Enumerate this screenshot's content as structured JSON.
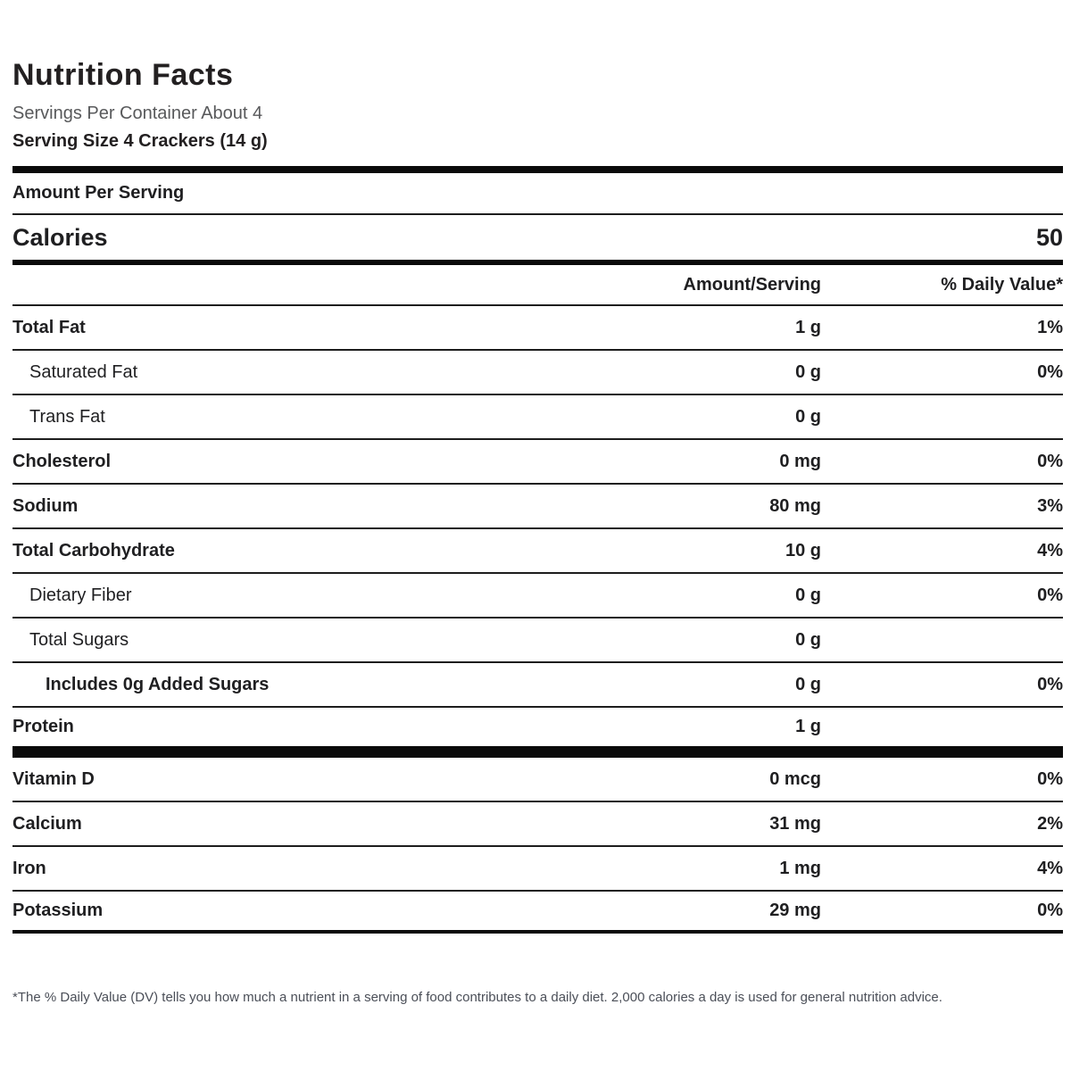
{
  "header": {
    "title": "Nutrition Facts",
    "servings_per_container": "Servings Per Container About 4",
    "serving_size": "Serving Size 4 Crackers (14 g)"
  },
  "amount_per_serving_label": "Amount Per Serving",
  "calories": {
    "label": "Calories",
    "value": "50"
  },
  "columns": {
    "amount": "Amount/Serving",
    "daily_value": "% Daily Value*"
  },
  "nutrient_rows": [
    {
      "label": "Total Fat",
      "amount": "1 g",
      "dv": "1%",
      "indent": 0,
      "bold": true
    },
    {
      "label": "Saturated Fat",
      "amount": "0 g",
      "dv": "0%",
      "indent": 1,
      "bold": false
    },
    {
      "label": "Trans Fat",
      "amount": "0 g",
      "dv": "",
      "indent": 1,
      "bold": false
    },
    {
      "label": "Cholesterol",
      "amount": "0 mg",
      "dv": "0%",
      "indent": 0,
      "bold": true
    },
    {
      "label": "Sodium",
      "amount": "80 mg",
      "dv": "3%",
      "indent": 0,
      "bold": true
    },
    {
      "label": "Total Carbohydrate",
      "amount": "10 g",
      "dv": "4%",
      "indent": 0,
      "bold": true
    },
    {
      "label": "Dietary Fiber",
      "amount": "0 g",
      "dv": "0%",
      "indent": 1,
      "bold": false
    },
    {
      "label": "Total Sugars",
      "amount": "0 g",
      "dv": "",
      "indent": 1,
      "bold": false
    },
    {
      "label": "Includes 0g Added Sugars",
      "amount": "0 g",
      "dv": "0%",
      "indent": 2,
      "bold": true
    },
    {
      "label": "Protein",
      "amount": "1 g",
      "dv": "",
      "indent": 0,
      "bold": true
    }
  ],
  "micronutrient_rows": [
    {
      "label": "Vitamin D",
      "amount": "0 mcg",
      "dv": "0%",
      "indent": 0,
      "bold": true
    },
    {
      "label": "Calcium",
      "amount": "31 mg",
      "dv": "2%",
      "indent": 0,
      "bold": true
    },
    {
      "label": "Iron",
      "amount": "1 mg",
      "dv": "4%",
      "indent": 0,
      "bold": true
    },
    {
      "label": "Potassium",
      "amount": "29 mg",
      "dv": "0%",
      "indent": 0,
      "bold": true
    }
  ],
  "footnote": "*The % Daily Value (DV) tells you how much a nutrient in a serving of food contributes to a daily diet. 2,000 calories a day is used for general nutrition advice.",
  "colors": {
    "text": "#1f1f21",
    "subtitle_gray": "#58595b",
    "rule_black": "#0a0a0a",
    "footnote_gray": "#4b4f58"
  }
}
